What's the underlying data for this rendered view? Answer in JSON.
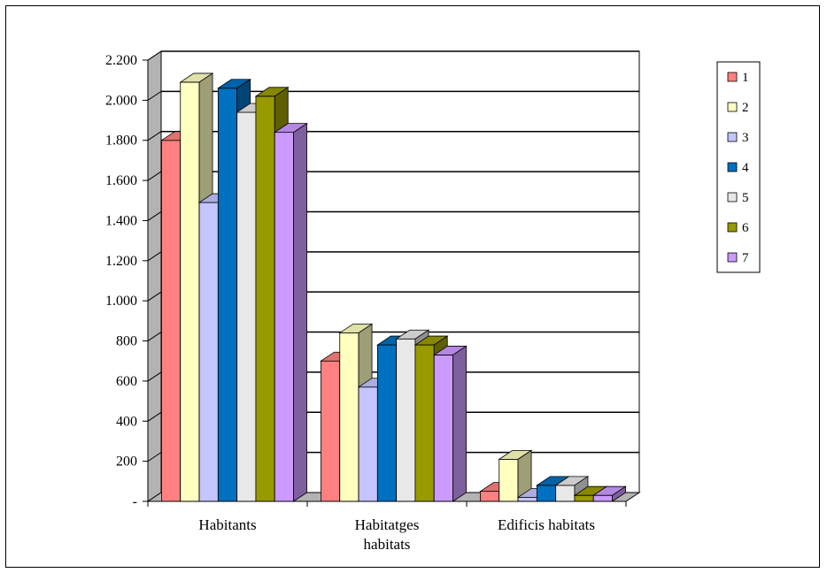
{
  "chart_data": {
    "type": "bar",
    "title": "",
    "xlabel": "",
    "ylabel": "",
    "ylim": [
      0,
      2200
    ],
    "yticks": [
      {
        "value": 0,
        "label": "-"
      },
      {
        "value": 200,
        "label": "200"
      },
      {
        "value": 400,
        "label": "400"
      },
      {
        "value": 600,
        "label": "600"
      },
      {
        "value": 800,
        "label": "800"
      },
      {
        "value": 1000,
        "label": "1.000"
      },
      {
        "value": 1200,
        "label": "1.200"
      },
      {
        "value": 1400,
        "label": "1.400"
      },
      {
        "value": 1600,
        "label": "1.600"
      },
      {
        "value": 1800,
        "label": "1.800"
      },
      {
        "value": 2000,
        "label": "2.000"
      },
      {
        "value": 2200,
        "label": "2.200"
      }
    ],
    "categories": [
      {
        "lines": [
          "Habitants"
        ]
      },
      {
        "lines": [
          "Habitatges",
          "habitats"
        ]
      },
      {
        "lines": [
          "Edificis habitats"
        ]
      }
    ],
    "series": [
      {
        "name": "1",
        "color": "#ff8080",
        "values": [
          1800,
          700,
          50
        ]
      },
      {
        "name": "2",
        "color": "#ffffc0",
        "values": [
          2090,
          840,
          210
        ]
      },
      {
        "name": "3",
        "color": "#c4c4ff",
        "values": [
          1490,
          570,
          20
        ]
      },
      {
        "name": "4",
        "color": "#0070c0",
        "values": [
          2060,
          780,
          80
        ]
      },
      {
        "name": "5",
        "color": "#e8e8e8",
        "values": [
          1940,
          810,
          80
        ]
      },
      {
        "name": "6",
        "color": "#999900",
        "values": [
          2020,
          780,
          30
        ]
      },
      {
        "name": "7",
        "color": "#cc99ff",
        "values": [
          1840,
          730,
          30
        ]
      }
    ],
    "grid": true,
    "legend_position": "right"
  }
}
